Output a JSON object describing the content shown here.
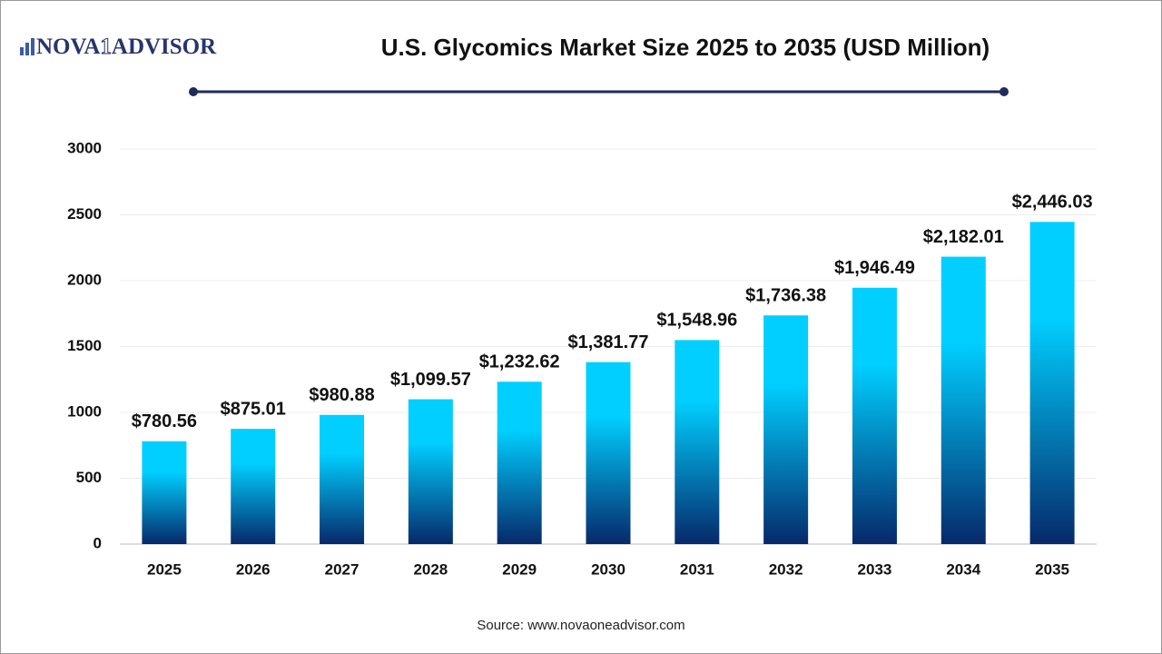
{
  "logo": {
    "left": "NOVA",
    "mark": "1",
    "right": "ADVISOR"
  },
  "source": "Source: www.novaoneadvisor.com",
  "chart_data": {
    "type": "bar",
    "title": "U.S. Glycomics Market Size 2025 to 2035 (USD Million)",
    "categories": [
      "2025",
      "2026",
      "2027",
      "2028",
      "2029",
      "2030",
      "2031",
      "2032",
      "2033",
      "2034",
      "2035"
    ],
    "values": [
      780.56,
      875.01,
      980.88,
      1099.57,
      1232.62,
      1381.77,
      1548.96,
      1736.38,
      1946.49,
      2182.01,
      2446.03
    ],
    "value_labels": [
      "$780.56",
      "$875.01",
      "$980.88",
      "$1,099.57",
      "$1,232.62",
      "$1,381.77",
      "$1,548.96",
      "$1,736.38",
      "$1,946.49",
      "$2,182.01",
      "$2,446.03"
    ],
    "colors": [
      "#00cfff",
      "#06296a"
    ],
    "ylim": [
      0,
      3000
    ],
    "yticks": [
      0,
      500,
      1000,
      1500,
      2000,
      2500,
      3000
    ],
    "grid": true
  }
}
